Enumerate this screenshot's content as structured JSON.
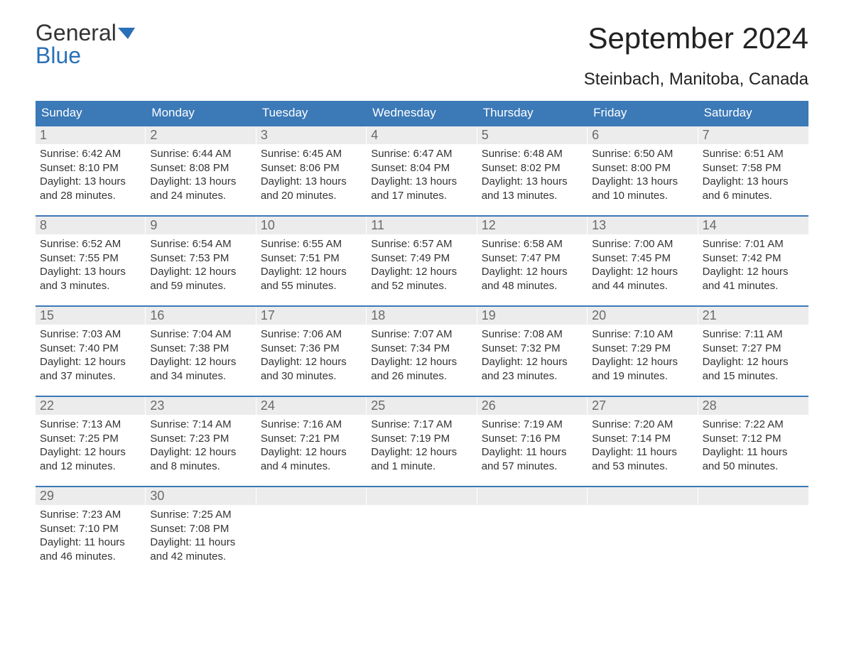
{
  "brand": {
    "word1": "General",
    "word2": "Blue"
  },
  "title": "September 2024",
  "subtitle": "Steinbach, Manitoba, Canada",
  "colors": {
    "header_bg": "#3b79b7",
    "header_text": "#ffffff",
    "daynum_bg": "#ececec",
    "daynum_text": "#6a6a6a",
    "body_text": "#333333",
    "rule": "#3b79b7",
    "brand_blue": "#2a70b8"
  },
  "day_labels": [
    "Sunday",
    "Monday",
    "Tuesday",
    "Wednesday",
    "Thursday",
    "Friday",
    "Saturday"
  ],
  "weeks": [
    [
      {
        "n": "1",
        "sunrise": "Sunrise: 6:42 AM",
        "sunset": "Sunset: 8:10 PM",
        "daylight": "Daylight: 13 hours and 28 minutes."
      },
      {
        "n": "2",
        "sunrise": "Sunrise: 6:44 AM",
        "sunset": "Sunset: 8:08 PM",
        "daylight": "Daylight: 13 hours and 24 minutes."
      },
      {
        "n": "3",
        "sunrise": "Sunrise: 6:45 AM",
        "sunset": "Sunset: 8:06 PM",
        "daylight": "Daylight: 13 hours and 20 minutes."
      },
      {
        "n": "4",
        "sunrise": "Sunrise: 6:47 AM",
        "sunset": "Sunset: 8:04 PM",
        "daylight": "Daylight: 13 hours and 17 minutes."
      },
      {
        "n": "5",
        "sunrise": "Sunrise: 6:48 AM",
        "sunset": "Sunset: 8:02 PM",
        "daylight": "Daylight: 13 hours and 13 minutes."
      },
      {
        "n": "6",
        "sunrise": "Sunrise: 6:50 AM",
        "sunset": "Sunset: 8:00 PM",
        "daylight": "Daylight: 13 hours and 10 minutes."
      },
      {
        "n": "7",
        "sunrise": "Sunrise: 6:51 AM",
        "sunset": "Sunset: 7:58 PM",
        "daylight": "Daylight: 13 hours and 6 minutes."
      }
    ],
    [
      {
        "n": "8",
        "sunrise": "Sunrise: 6:52 AM",
        "sunset": "Sunset: 7:55 PM",
        "daylight": "Daylight: 13 hours and 3 minutes."
      },
      {
        "n": "9",
        "sunrise": "Sunrise: 6:54 AM",
        "sunset": "Sunset: 7:53 PM",
        "daylight": "Daylight: 12 hours and 59 minutes."
      },
      {
        "n": "10",
        "sunrise": "Sunrise: 6:55 AM",
        "sunset": "Sunset: 7:51 PM",
        "daylight": "Daylight: 12 hours and 55 minutes."
      },
      {
        "n": "11",
        "sunrise": "Sunrise: 6:57 AM",
        "sunset": "Sunset: 7:49 PM",
        "daylight": "Daylight: 12 hours and 52 minutes."
      },
      {
        "n": "12",
        "sunrise": "Sunrise: 6:58 AM",
        "sunset": "Sunset: 7:47 PM",
        "daylight": "Daylight: 12 hours and 48 minutes."
      },
      {
        "n": "13",
        "sunrise": "Sunrise: 7:00 AM",
        "sunset": "Sunset: 7:45 PM",
        "daylight": "Daylight: 12 hours and 44 minutes."
      },
      {
        "n": "14",
        "sunrise": "Sunrise: 7:01 AM",
        "sunset": "Sunset: 7:42 PM",
        "daylight": "Daylight: 12 hours and 41 minutes."
      }
    ],
    [
      {
        "n": "15",
        "sunrise": "Sunrise: 7:03 AM",
        "sunset": "Sunset: 7:40 PM",
        "daylight": "Daylight: 12 hours and 37 minutes."
      },
      {
        "n": "16",
        "sunrise": "Sunrise: 7:04 AM",
        "sunset": "Sunset: 7:38 PM",
        "daylight": "Daylight: 12 hours and 34 minutes."
      },
      {
        "n": "17",
        "sunrise": "Sunrise: 7:06 AM",
        "sunset": "Sunset: 7:36 PM",
        "daylight": "Daylight: 12 hours and 30 minutes."
      },
      {
        "n": "18",
        "sunrise": "Sunrise: 7:07 AM",
        "sunset": "Sunset: 7:34 PM",
        "daylight": "Daylight: 12 hours and 26 minutes."
      },
      {
        "n": "19",
        "sunrise": "Sunrise: 7:08 AM",
        "sunset": "Sunset: 7:32 PM",
        "daylight": "Daylight: 12 hours and 23 minutes."
      },
      {
        "n": "20",
        "sunrise": "Sunrise: 7:10 AM",
        "sunset": "Sunset: 7:29 PM",
        "daylight": "Daylight: 12 hours and 19 minutes."
      },
      {
        "n": "21",
        "sunrise": "Sunrise: 7:11 AM",
        "sunset": "Sunset: 7:27 PM",
        "daylight": "Daylight: 12 hours and 15 minutes."
      }
    ],
    [
      {
        "n": "22",
        "sunrise": "Sunrise: 7:13 AM",
        "sunset": "Sunset: 7:25 PM",
        "daylight": "Daylight: 12 hours and 12 minutes."
      },
      {
        "n": "23",
        "sunrise": "Sunrise: 7:14 AM",
        "sunset": "Sunset: 7:23 PM",
        "daylight": "Daylight: 12 hours and 8 minutes."
      },
      {
        "n": "24",
        "sunrise": "Sunrise: 7:16 AM",
        "sunset": "Sunset: 7:21 PM",
        "daylight": "Daylight: 12 hours and 4 minutes."
      },
      {
        "n": "25",
        "sunrise": "Sunrise: 7:17 AM",
        "sunset": "Sunset: 7:19 PM",
        "daylight": "Daylight: 12 hours and 1 minute."
      },
      {
        "n": "26",
        "sunrise": "Sunrise: 7:19 AM",
        "sunset": "Sunset: 7:16 PM",
        "daylight": "Daylight: 11 hours and 57 minutes."
      },
      {
        "n": "27",
        "sunrise": "Sunrise: 7:20 AM",
        "sunset": "Sunset: 7:14 PM",
        "daylight": "Daylight: 11 hours and 53 minutes."
      },
      {
        "n": "28",
        "sunrise": "Sunrise: 7:22 AM",
        "sunset": "Sunset: 7:12 PM",
        "daylight": "Daylight: 11 hours and 50 minutes."
      }
    ],
    [
      {
        "n": "29",
        "sunrise": "Sunrise: 7:23 AM",
        "sunset": "Sunset: 7:10 PM",
        "daylight": "Daylight: 11 hours and 46 minutes."
      },
      {
        "n": "30",
        "sunrise": "Sunrise: 7:25 AM",
        "sunset": "Sunset: 7:08 PM",
        "daylight": "Daylight: 11 hours and 42 minutes."
      },
      null,
      null,
      null,
      null,
      null
    ]
  ]
}
